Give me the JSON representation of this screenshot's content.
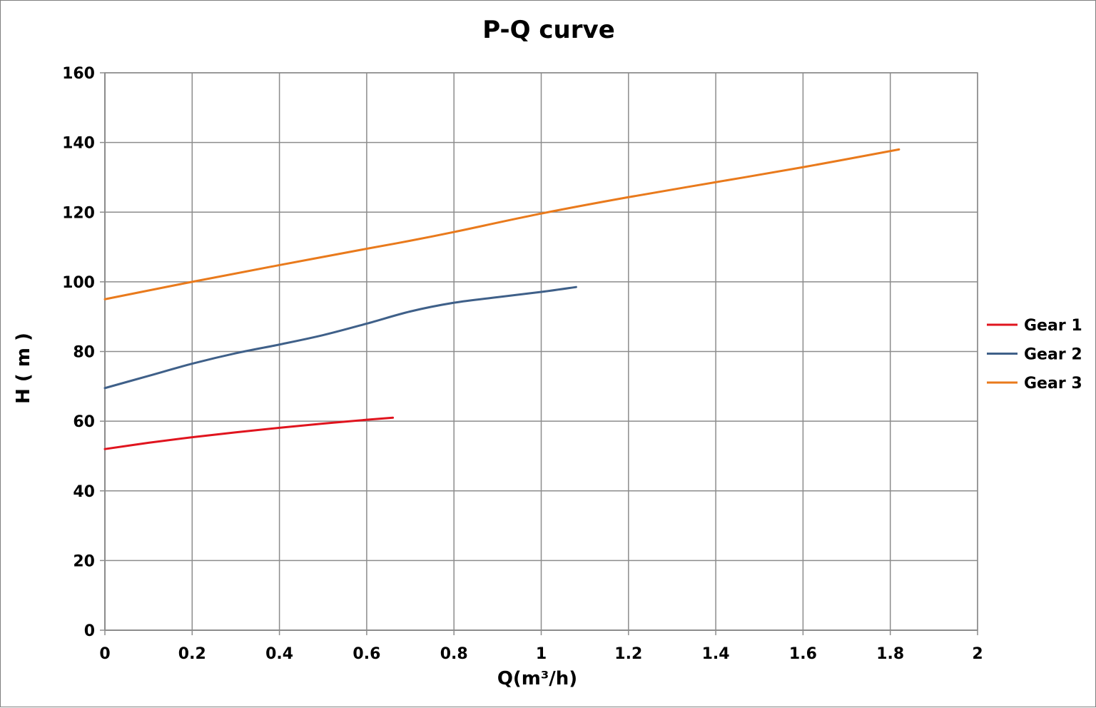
{
  "chart_data": {
    "type": "line",
    "title": "P-Q  curve",
    "xlabel": "Q(m³/h)",
    "ylabel": "H ( m )",
    "xlim": [
      0,
      2
    ],
    "ylim": [
      0,
      160
    ],
    "xticks": [
      0,
      0.2,
      0.4,
      0.6,
      0.8,
      1,
      1.2,
      1.4,
      1.6,
      1.8,
      2
    ],
    "xtick_labels": [
      "0",
      "0.2",
      "0.4",
      "0.6",
      "0.8",
      "1",
      "1.2",
      "1.4",
      "1.6",
      "1.8",
      "2"
    ],
    "yticks": [
      0,
      20,
      40,
      60,
      80,
      100,
      120,
      140,
      160
    ],
    "ytick_labels": [
      "0",
      "20",
      "40",
      "60",
      "80",
      "100",
      "120",
      "140",
      "160"
    ],
    "grid": true,
    "legend_position": "right",
    "series": [
      {
        "name": "Gear 1",
        "color": "#e0141e",
        "x": [
          0,
          0.1,
          0.2,
          0.3,
          0.4,
          0.5,
          0.6,
          0.66
        ],
        "y": [
          52,
          53.8,
          55.4,
          56.8,
          58.1,
          59.3,
          60.4,
          61
        ]
      },
      {
        "name": "Gear 2",
        "color": "#3f6089",
        "x": [
          0,
          0.1,
          0.2,
          0.3,
          0.4,
          0.5,
          0.6,
          0.7,
          0.8,
          0.9,
          1.0,
          1.08
        ],
        "y": [
          69.5,
          73,
          76.5,
          79.5,
          82,
          84.7,
          88,
          91.5,
          94,
          95.6,
          97.1,
          98.5
        ]
      },
      {
        "name": "Gear 3",
        "color": "#e97a1c",
        "x": [
          0,
          0.2,
          0.4,
          0.6,
          0.7,
          0.8,
          1.0,
          1.2,
          1.4,
          1.6,
          1.82
        ],
        "y": [
          95,
          100,
          104.8,
          109.5,
          111.8,
          114.3,
          119.6,
          124.3,
          128.6,
          132.9,
          138
        ]
      }
    ]
  }
}
